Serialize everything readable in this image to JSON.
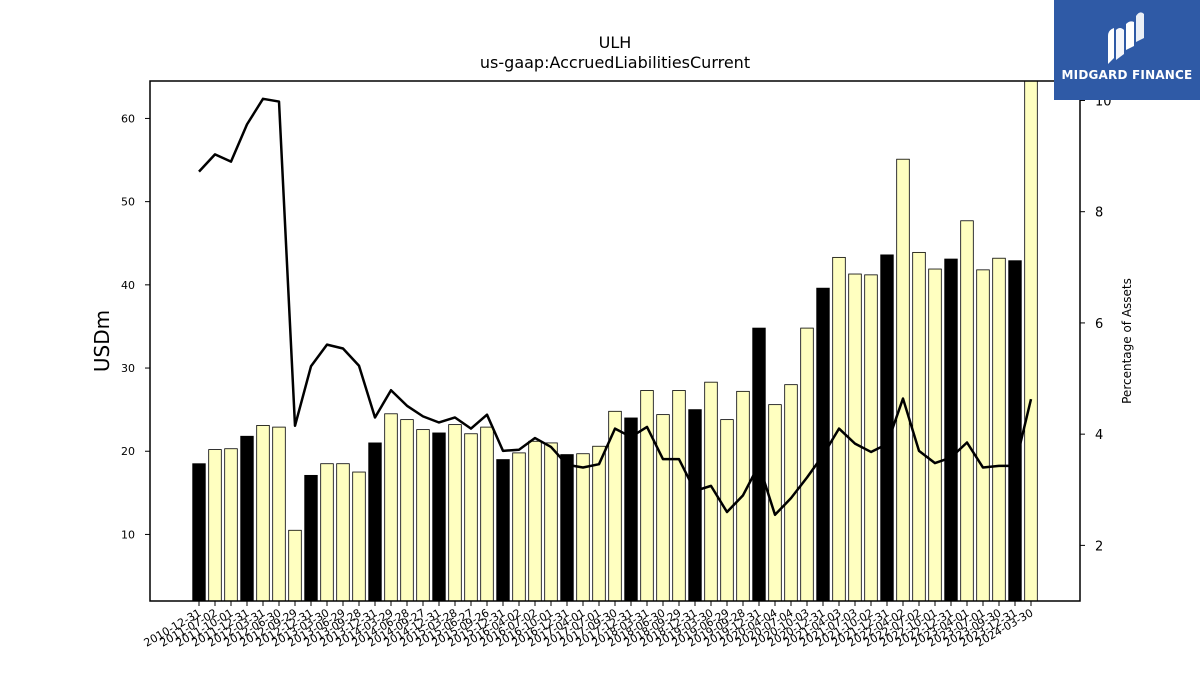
{
  "brand": {
    "name": "MIDGARD FINANCE"
  },
  "chart_data": {
    "type": "bar",
    "title": "ULH",
    "subtitle": "us-gaap:AccruedLiabilitiesCurrent",
    "ylabel": "USDm",
    "y2label": "Percentage of Assets",
    "ylim": [
      2,
      64.5
    ],
    "y2lim": [
      1.0,
      10.35
    ],
    "yticks": [
      10,
      20,
      30,
      40,
      50,
      60
    ],
    "y2ticks": [
      2,
      4,
      6,
      8,
      10
    ],
    "grid": false,
    "legend": "none",
    "colors": {
      "annual_bar": "#000000",
      "quarterly_bar": "#ffffc0",
      "line": "#000000"
    },
    "categories": [
      "2010-12-31",
      "2011-07-02",
      "2011-10-01",
      "2011-12-31",
      "2012-03-31",
      "2012-06-30",
      "2012-09-29",
      "2012-12-31",
      "2013-03-30",
      "2013-06-29",
      "2013-09-28",
      "2013-12-31",
      "2014-03-29",
      "2014-06-28",
      "2014-09-27",
      "2014-12-31",
      "2015-03-28",
      "2015-06-27",
      "2015-09-26",
      "2015-12-31",
      "2016-04-02",
      "2016-07-02",
      "2016-10-01",
      "2016-12-31",
      "2017-04-01",
      "2017-07-01",
      "2017-09-30",
      "2017-12-31",
      "2018-03-31",
      "2018-06-30",
      "2018-09-29",
      "2018-12-31",
      "2019-03-30",
      "2019-06-29",
      "2019-09-28",
      "2019-12-31",
      "2020-04-04",
      "2020-07-04",
      "2020-10-03",
      "2020-12-31",
      "2021-04-03",
      "2021-07-03",
      "2021-10-02",
      "2021-12-31",
      "2022-04-02",
      "2022-07-02",
      "2022-10-01",
      "2022-12-31",
      "2023-04-01",
      "2023-07-01",
      "2023-09-30",
      "2023-12-31",
      "2024-03-30"
    ],
    "xtick_labels": [
      "2010-12-31",
      "2011-07-02",
      "2011-10-01",
      "2011-12-31",
      "2012-03-31",
      "2012-06-30",
      "2012-09-29",
      "2012-12-31",
      "2013-03-30",
      "2013-06-29",
      "2013-09-28",
      "2013-12-31",
      "2014-03-29",
      "2014-06-28",
      "2014-09-27",
      "2014-12-31",
      "2015-03-28",
      "2015-06-27",
      "2015-09-26",
      "2015-12-31",
      "2016-04-02",
      "2016-07-02",
      "2016-10-01",
      "2016-12-31",
      "2017-04-01",
      "2017-07-01",
      "2017-09-30",
      "2017-12-31",
      "2018-03-31",
      "2018-06-30",
      "2018-09-29",
      "2018-12-31",
      "2019-03-30",
      "2019-06-29",
      "2019-09-28",
      "2019-12-31",
      "2020-04-04",
      "2020-07-04",
      "2020-10-03",
      "2020-12-31",
      "2021-04-03",
      "2021-07-03",
      "2021-10-02",
      "2021-12-31",
      "2022-04-02",
      "2022-07-02",
      "2022-10-01",
      "2022-12-31",
      "2023-04-01",
      "2023-07-01",
      "2023-09-30",
      "2023-12-31",
      "2024-03-30"
    ],
    "annual": [
      true,
      false,
      false,
      true,
      false,
      false,
      false,
      true,
      false,
      false,
      false,
      true,
      false,
      false,
      false,
      true,
      false,
      false,
      false,
      true,
      false,
      false,
      false,
      true,
      false,
      false,
      false,
      true,
      false,
      false,
      false,
      true,
      false,
      false,
      false,
      true,
      false,
      false,
      false,
      true,
      false,
      false,
      false,
      true,
      false,
      false,
      false,
      true,
      false,
      false,
      false,
      true,
      false
    ],
    "series": [
      {
        "values": [
          18.5,
          20.2,
          20.3,
          21.8,
          23.1,
          22.9,
          10.5,
          17.1,
          18.5,
          18.5,
          17.5,
          21.0,
          24.5,
          23.8,
          22.6,
          22.2,
          23.2,
          22.1,
          22.9,
          19.0,
          19.8,
          21.2,
          21.0,
          19.6,
          19.7,
          20.6,
          24.8,
          24.0,
          27.3,
          24.4,
          27.3,
          25.0,
          28.3,
          23.8,
          27.2,
          34.8,
          25.6,
          28.0,
          34.8,
          39.6,
          43.3,
          41.3,
          41.2,
          43.6,
          55.1,
          43.9,
          41.9,
          43.1,
          47.7,
          41.8,
          43.2,
          42.9,
          65.0
        ]
      },
      {
        "axis": "right",
        "values": [
          8.72,
          9.03,
          8.9,
          9.57,
          10.03,
          9.98,
          4.15,
          5.22,
          5.61,
          5.54,
          5.23,
          4.3,
          4.79,
          4.51,
          4.32,
          4.21,
          4.3,
          4.1,
          4.35,
          3.7,
          3.72,
          3.93,
          3.77,
          3.45,
          3.4,
          3.46,
          4.1,
          3.95,
          4.13,
          3.55,
          3.55,
          2.98,
          3.07,
          2.6,
          2.9,
          3.45,
          2.55,
          2.85,
          3.22,
          3.62,
          4.1,
          3.83,
          3.68,
          3.82,
          4.64,
          3.7,
          3.48,
          3.58,
          3.85,
          3.4,
          3.43,
          3.43,
          4.63
        ]
      }
    ]
  }
}
